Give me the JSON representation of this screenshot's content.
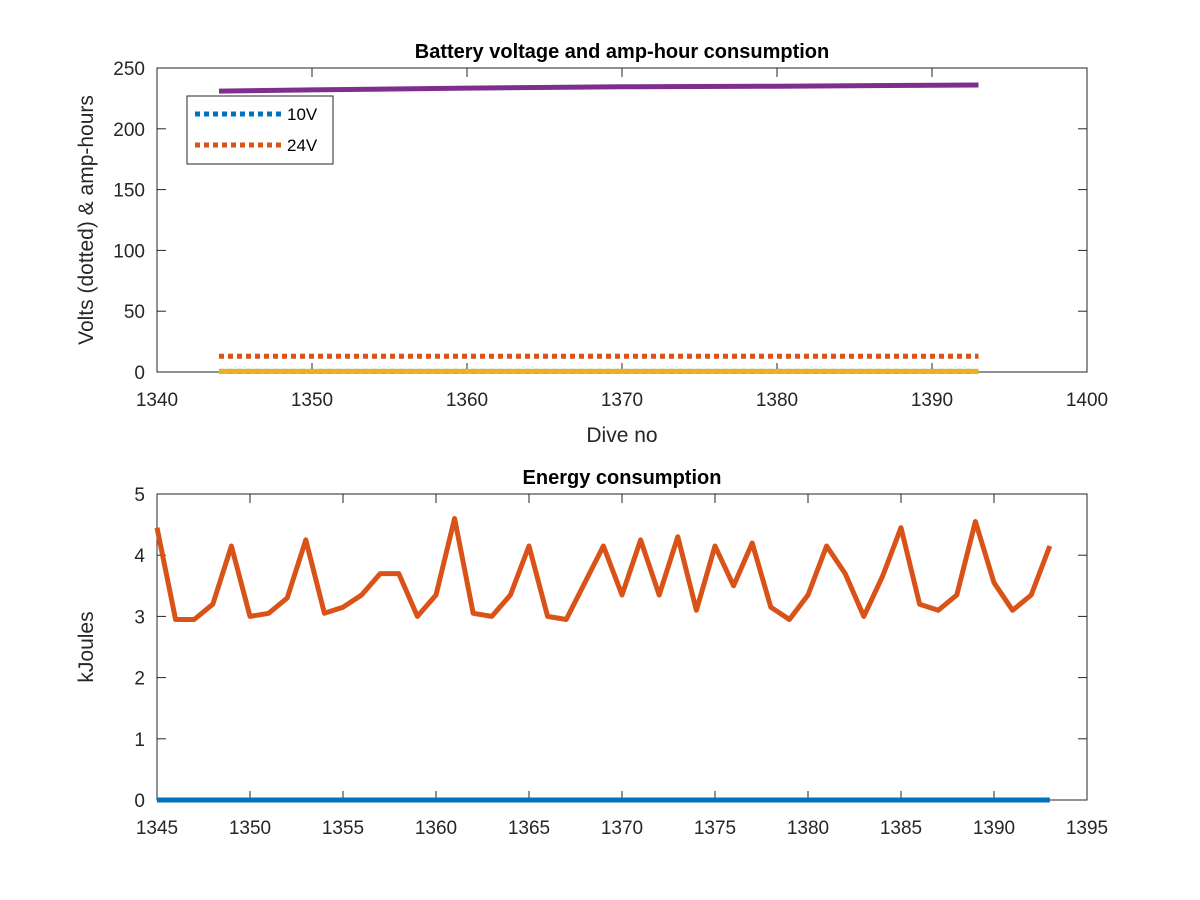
{
  "chart_data": [
    {
      "type": "line",
      "title": "Battery voltage and amp-hour consumption",
      "xlabel": "Dive no",
      "ylabel": "Volts (dotted) & amp-hours",
      "xlim": [
        1340,
        1400
      ],
      "ylim": [
        0,
        250
      ],
      "xticks": [
        1340,
        1350,
        1360,
        1370,
        1380,
        1390,
        1400
      ],
      "yticks": [
        0,
        50,
        100,
        150,
        200,
        250
      ],
      "grid": false,
      "legend": {
        "placement": "top-left",
        "entries": [
          "10V",
          "24V"
        ]
      },
      "series": [
        {
          "name": "10V",
          "style": "dotted",
          "color": "#0072BD",
          "x": [
            1344,
            1393
          ],
          "y": [
            0.5,
            0.5
          ]
        },
        {
          "name": "24V",
          "style": "dotted",
          "color": "#D95319",
          "x": [
            1344,
            1393
          ],
          "y": [
            13,
            13
          ]
        },
        {
          "style": "solid",
          "color": "#EDB120",
          "x": [
            1344,
            1393
          ],
          "y": [
            0.5,
            0.5
          ]
        },
        {
          "style": "solid",
          "color": "#7E2F8E",
          "x": [
            1344,
            1350,
            1360,
            1370,
            1380,
            1393
          ],
          "y": [
            231,
            232,
            233.5,
            234.5,
            235,
            236
          ]
        }
      ]
    },
    {
      "type": "line",
      "title": "Energy consumption",
      "xlabel": "",
      "ylabel": "kJoules",
      "xlim": [
        1345,
        1395
      ],
      "ylim": [
        0,
        5
      ],
      "xticks": [
        1345,
        1350,
        1355,
        1360,
        1365,
        1370,
        1375,
        1380,
        1385,
        1390,
        1395
      ],
      "yticks": [
        0,
        1,
        2,
        3,
        4,
        5
      ],
      "grid": false,
      "series": [
        {
          "style": "solid",
          "color": "#D95319",
          "x": [
            1345,
            1346,
            1347,
            1348,
            1349,
            1350,
            1351,
            1352,
            1353,
            1354,
            1355,
            1356,
            1357,
            1358,
            1359,
            1360,
            1361,
            1362,
            1363,
            1364,
            1365,
            1366,
            1367,
            1368,
            1369,
            1370,
            1371,
            1372,
            1373,
            1374,
            1375,
            1376,
            1377,
            1378,
            1379,
            1380,
            1381,
            1382,
            1383,
            1384,
            1385,
            1386,
            1387,
            1388,
            1389,
            1390,
            1391,
            1392,
            1393
          ],
          "y": [
            4.45,
            2.95,
            2.95,
            3.2,
            4.15,
            3.0,
            3.05,
            3.3,
            4.25,
            3.05,
            3.15,
            3.35,
            3.7,
            3.7,
            3.0,
            3.35,
            4.6,
            3.05,
            3.0,
            3.35,
            4.15,
            3.0,
            2.95,
            3.55,
            4.15,
            3.35,
            4.25,
            3.35,
            4.3,
            3.1,
            4.15,
            3.5,
            4.2,
            3.15,
            2.95,
            3.35,
            4.15,
            3.7,
            3.0,
            3.65,
            4.45,
            3.2,
            3.1,
            3.35,
            4.55,
            3.55,
            3.1,
            3.35,
            4.15
          ]
        },
        {
          "style": "solid",
          "color": "#0072BD",
          "x": [
            1345,
            1393
          ],
          "y": [
            0,
            0
          ]
        }
      ]
    }
  ]
}
